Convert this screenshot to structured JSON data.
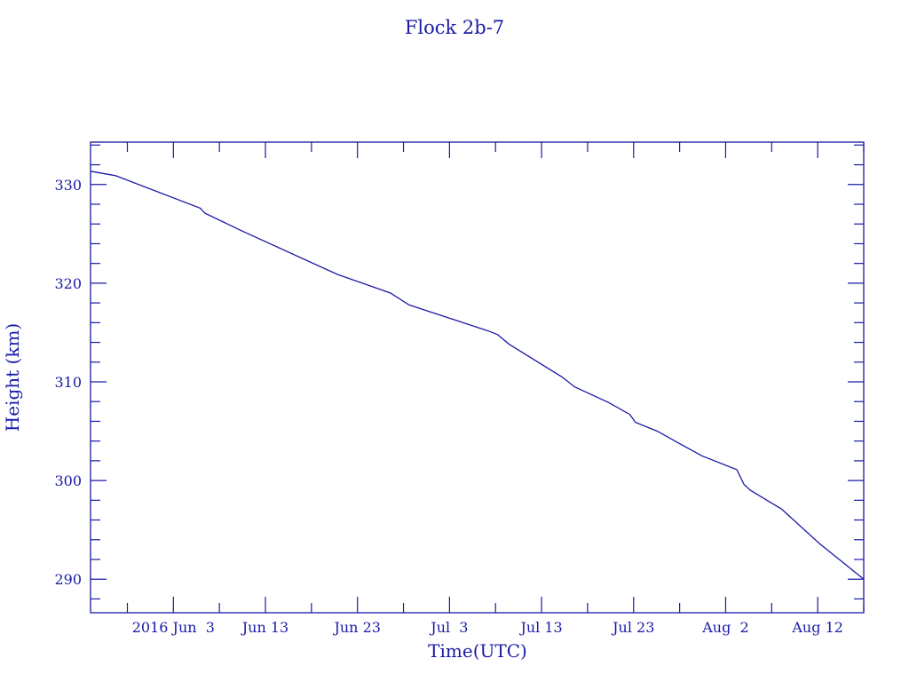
{
  "chart_data": {
    "type": "line",
    "title": "Flock 2b-7",
    "xlabel": "Time(UTC)",
    "ylabel": "Height (km)",
    "xlim": [
      "2016-05-25T00:00",
      "2016-08-17T00:00"
    ],
    "ylim": [
      286.6,
      334.3
    ],
    "x_major_ticks": [
      {
        "date": "2016-06-03",
        "label": "2016 Jun  3"
      },
      {
        "date": "2016-06-13",
        "label": "Jun 13"
      },
      {
        "date": "2016-06-23",
        "label": "Jun 23"
      },
      {
        "date": "2016-07-03",
        "label": "Jul  3"
      },
      {
        "date": "2016-07-13",
        "label": "Jul 13"
      },
      {
        "date": "2016-07-23",
        "label": "Jul 23"
      },
      {
        "date": "2016-08-02",
        "label": "Aug  2"
      },
      {
        "date": "2016-08-12",
        "label": "Aug 12"
      }
    ],
    "y_major_ticks": [
      290,
      300,
      310,
      320,
      330
    ],
    "y_tick_labels": [
      "290",
      "300",
      "310",
      "320",
      "330"
    ],
    "grid": false,
    "color": "#1a1aa6",
    "series": [
      {
        "x": [
          "2016-05-25T00:00",
          "2016-05-27T17:00",
          "2016-06-05T22:00",
          "2016-06-06T10:00",
          "2016-06-10T05:00",
          "2016-06-20T19:00",
          "2016-06-26T14:00",
          "2016-06-28T14:00",
          "2016-07-07T02:00",
          "2016-07-08T05:00",
          "2016-07-09T12:00",
          "2016-07-15T05:00",
          "2016-07-16T14:00",
          "2016-07-20T07:00",
          "2016-07-22T14:00",
          "2016-07-23T05:00",
          "2016-07-25T14:00",
          "2016-07-27T12:00",
          "2016-07-30T10:00",
          "2016-08-03T05:00",
          "2016-08-04T00:00",
          "2016-08-04T17:00",
          "2016-08-08T02:00",
          "2016-08-12T05:00",
          "2016-08-17T00:00"
        ],
        "y": [
          331.35,
          330.9,
          327.6,
          327.1,
          325.4,
          320.9,
          319.0,
          317.8,
          315.2,
          314.8,
          313.8,
          310.5,
          309.5,
          307.9,
          306.7,
          305.9,
          305.0,
          304.0,
          302.5,
          301.1,
          299.6,
          299.0,
          297.1,
          293.6,
          290.0
        ]
      }
    ]
  }
}
